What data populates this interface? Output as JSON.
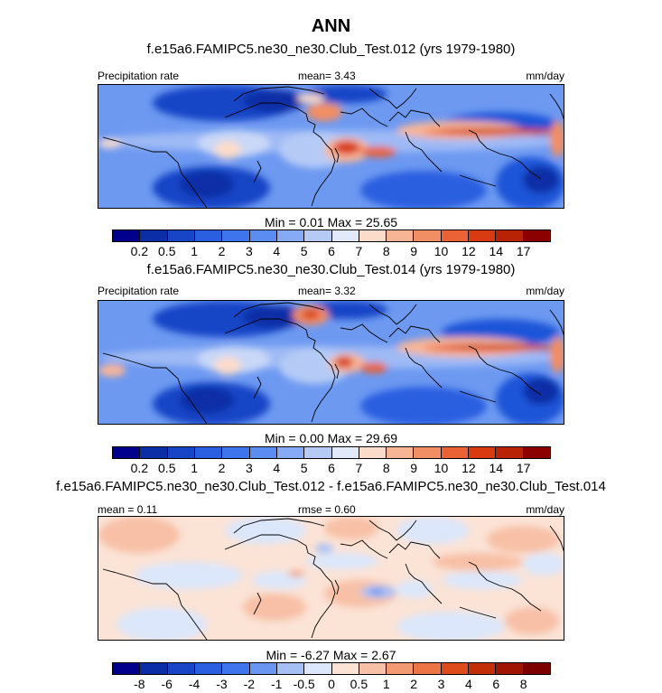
{
  "title": "ANN",
  "chart_data": [
    {
      "type": "heatmap",
      "title": "f.e15a6.FAMIPC5.ne30_ne30.Club_Test.012 (yrs 1979-1980)",
      "left_label": "Precipitation rate",
      "center_label": "mean=   3.43",
      "units": "mm/day",
      "min_max": "Min =   0.01 Max =  25.65",
      "colorbar_labels": [
        "0.2",
        "0.5",
        "1",
        "2",
        "3",
        "4",
        "5",
        "6",
        "7",
        "8",
        "9",
        "10",
        "12",
        "14",
        "17"
      ],
      "colorbar_colors": [
        "#00008c",
        "#0b2ea6",
        "#1745c6",
        "#2a5fe0",
        "#3e75ec",
        "#5b8cf0",
        "#86aaf4",
        "#b5cbf6",
        "#e2e9f8",
        "#fbdccb",
        "#f8b596",
        "#f28e63",
        "#ea6235",
        "#d83a12",
        "#b82306",
        "#8c0000"
      ]
    },
    {
      "type": "heatmap",
      "title": "f.e15a6.FAMIPC5.ne30_ne30.Club_Test.014 (yrs 1979-1980)",
      "left_label": "Precipitation rate",
      "center_label": "mean=   3.32",
      "units": "mm/day",
      "min_max": "Min =   0.00 Max =  29.69",
      "colorbar_labels": [
        "0.2",
        "0.5",
        "1",
        "2",
        "3",
        "4",
        "5",
        "6",
        "7",
        "8",
        "9",
        "10",
        "12",
        "14",
        "17"
      ],
      "colorbar_colors": [
        "#00008c",
        "#0b2ea6",
        "#1745c6",
        "#2a5fe0",
        "#3e75ec",
        "#5b8cf0",
        "#86aaf4",
        "#b5cbf6",
        "#e2e9f8",
        "#fbdccb",
        "#f8b596",
        "#f28e63",
        "#ea6235",
        "#d83a12",
        "#b82306",
        "#8c0000"
      ]
    },
    {
      "type": "heatmap",
      "title": "f.e15a6.FAMIPC5.ne30_ne30.Club_Test.012 - f.e15a6.FAMIPC5.ne30_ne30.Club_Test.014",
      "left_label": "mean =   0.11",
      "center_label": "rmse =   0.60",
      "units": "mm/day",
      "min_max": "Min =  -6.27 Max =   2.67",
      "colorbar_labels": [
        "-8",
        "-6",
        "-4",
        "-3",
        "-2",
        "-1",
        "-0.5",
        "0",
        "0.5",
        "1",
        "2",
        "3",
        "4",
        "6",
        "8"
      ],
      "colorbar_colors": [
        "#00008c",
        "#0b2ea6",
        "#1745c6",
        "#2a5fe0",
        "#3e75ec",
        "#6a96f2",
        "#a6c0f6",
        "#dce7fb",
        "#fbe3d6",
        "#f8c0a6",
        "#f39a72",
        "#ec7445",
        "#de4c1c",
        "#c12e08",
        "#a01502",
        "#7c0000"
      ]
    }
  ]
}
